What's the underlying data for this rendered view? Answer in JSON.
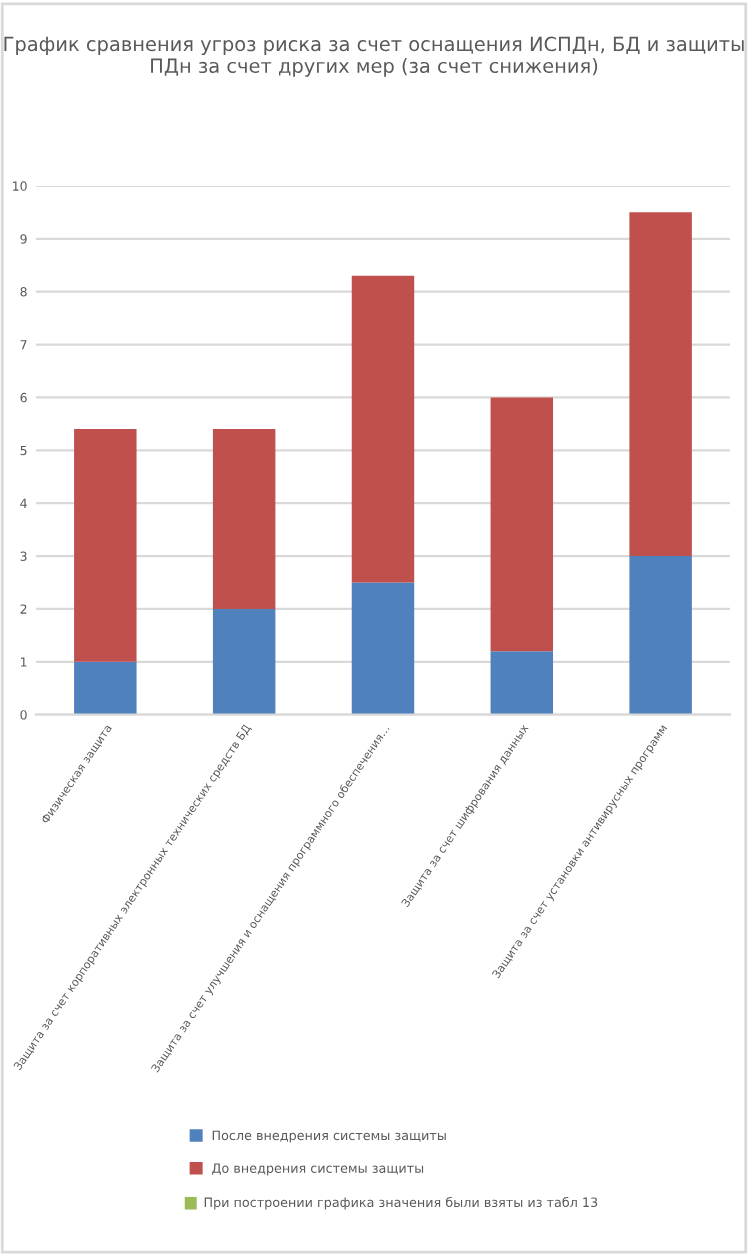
{
  "chart_data": {
    "type": "bar",
    "title": "График сравнения угроз риска за счет оснащения ИСПДн, БД и защиты ПДн за счет других мер (за счет снижения)",
    "categories": [
      "Физическая защита",
      "Защита за счет корпоративных электронных технических средств БД",
      "Защита за счет улучшения и оснащения программного обеспечения…",
      "Защита за счет шифрования данных",
      "Защита за счет установки антивирусных программ"
    ],
    "series": [
      {
        "name": "После внедрения системы защиты",
        "color": "#4f81bd",
        "values": [
          1.0,
          2.0,
          2.5,
          1.2,
          3.0
        ]
      },
      {
        "name": "До внедрения системы защиты",
        "color": "#c0504d",
        "values": [
          4.4,
          3.4,
          5.8,
          4.8,
          6.5
        ]
      }
    ],
    "annotations": [
      "При построении графика значения были взяты из табл 13"
    ],
    "stacked": true,
    "ylim": [
      0,
      10
    ],
    "yticks": [
      0,
      1,
      2,
      3,
      4,
      5,
      6,
      7,
      8,
      9,
      10
    ],
    "grid": "y",
    "legend": "bottom"
  }
}
